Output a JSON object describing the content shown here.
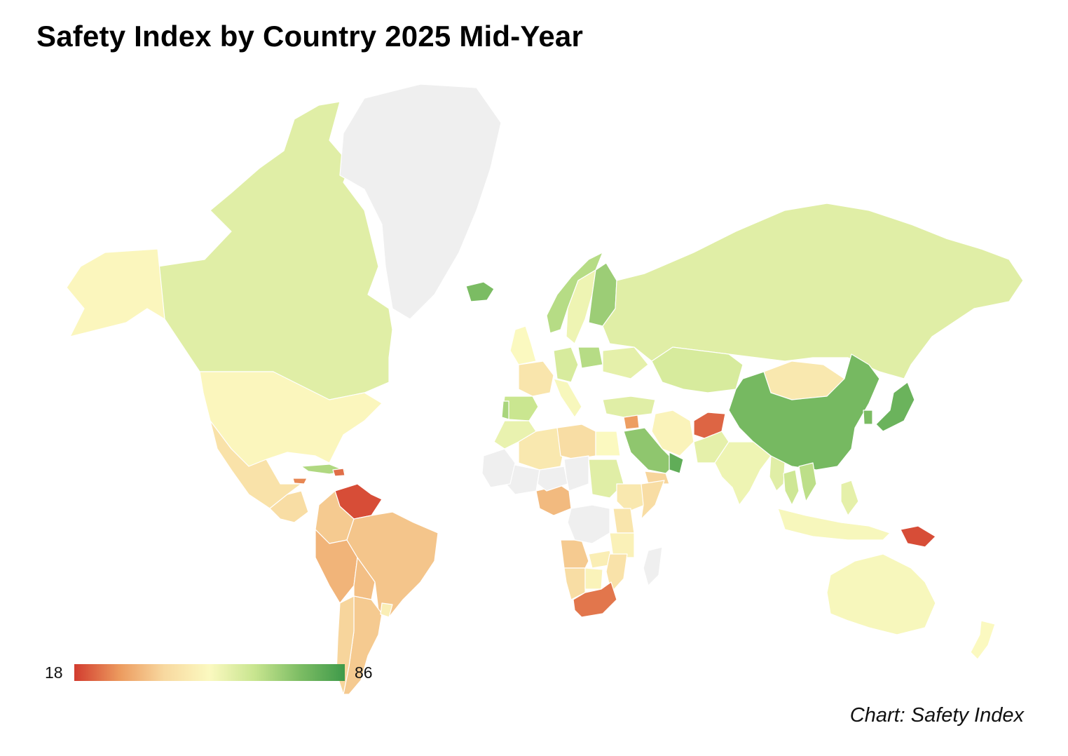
{
  "header": {
    "title": "Safety Index by Country 2025 Mid-Year"
  },
  "legend": {
    "min_label": "18",
    "max_label": "86",
    "min": 18,
    "max": 86,
    "stops": [
      "#d23c2f",
      "#ec9a5e",
      "#f8d9a0",
      "#fbf9c0",
      "#c8e58f",
      "#7dbd64",
      "#3f9a4a"
    ]
  },
  "colors": {
    "no_data": "#efefef",
    "ocean": "#ffffff"
  },
  "footer": {
    "source": "Chart: Safety Index"
  },
  "chart_data": {
    "type": "choropleth",
    "title": "Safety Index by Country 2025 Mid-Year",
    "value_range": [
      18,
      86
    ],
    "source": "Chart: Safety Index",
    "regions": [
      {
        "name": "Canada",
        "value": 58
      },
      {
        "name": "United States",
        "value": 51
      },
      {
        "name": "Alaska",
        "value": 51
      },
      {
        "name": "Greenland",
        "value": null
      },
      {
        "name": "Mexico",
        "value": 44
      },
      {
        "name": "Guatemala",
        "value": 42
      },
      {
        "name": "Cuba",
        "value": 67
      },
      {
        "name": "Haiti",
        "value": 24
      },
      {
        "name": "Jamaica",
        "value": 27
      },
      {
        "name": "Venezuela",
        "value": 20
      },
      {
        "name": "Colombia",
        "value": 38
      },
      {
        "name": "Peru",
        "value": 34
      },
      {
        "name": "Brazil",
        "value": 37
      },
      {
        "name": "Bolivia",
        "value": 36
      },
      {
        "name": "Argentina",
        "value": 38
      },
      {
        "name": "Chile",
        "value": 40
      },
      {
        "name": "Uruguay",
        "value": 48
      },
      {
        "name": "Iceland",
        "value": 75
      },
      {
        "name": "Norway",
        "value": 66
      },
      {
        "name": "Sweden",
        "value": 55
      },
      {
        "name": "Finland",
        "value": 70
      },
      {
        "name": "United Kingdom",
        "value": 52
      },
      {
        "name": "France",
        "value": 45
      },
      {
        "name": "Spain",
        "value": 63
      },
      {
        "name": "Portugal",
        "value": 68
      },
      {
        "name": "Germany",
        "value": 60
      },
      {
        "name": "Poland",
        "value": 66
      },
      {
        "name": "Italy",
        "value": 53
      },
      {
        "name": "Ukraine",
        "value": 57
      },
      {
        "name": "Russia",
        "value": 58
      },
      {
        "name": "Turkey",
        "value": 58
      },
      {
        "name": "Kazakhstan",
        "value": 60
      },
      {
        "name": "Mongolia",
        "value": 46
      },
      {
        "name": "China",
        "value": 76
      },
      {
        "name": "Japan",
        "value": 78
      },
      {
        "name": "South Korea",
        "value": 75
      },
      {
        "name": "Iran",
        "value": 50
      },
      {
        "name": "Afghanistan",
        "value": 23
      },
      {
        "name": "Pakistan",
        "value": 57
      },
      {
        "name": "India",
        "value": 55
      },
      {
        "name": "Saudi Arabia",
        "value": 72
      },
      {
        "name": "Oman",
        "value": 80
      },
      {
        "name": "Yemen",
        "value": 40
      },
      {
        "name": "Syria",
        "value": 30
      },
      {
        "name": "Myanmar",
        "value": 58
      },
      {
        "name": "Thailand",
        "value": 62
      },
      {
        "name": "Vietnam",
        "value": 65
      },
      {
        "name": "Indonesia",
        "value": 53
      },
      {
        "name": "Philippines",
        "value": 57
      },
      {
        "name": "Papua New Guinea",
        "value": 20
      },
      {
        "name": "Australia",
        "value": 53
      },
      {
        "name": "New Zealand",
        "value": 52
      },
      {
        "name": "Morocco",
        "value": 56
      },
      {
        "name": "Algeria",
        "value": 46
      },
      {
        "name": "Libya",
        "value": 42
      },
      {
        "name": "Egypt",
        "value": 52
      },
      {
        "name": "Sudan",
        "value": 58
      },
      {
        "name": "Nigeria",
        "value": 35
      },
      {
        "name": "Ethiopia",
        "value": 46
      },
      {
        "name": "Kenya",
        "value": 45
      },
      {
        "name": "Somalia",
        "value": 42
      },
      {
        "name": "Tanzania",
        "value": 49
      },
      {
        "name": "Angola",
        "value": 38
      },
      {
        "name": "Namibia",
        "value": 42
      },
      {
        "name": "Zambia",
        "value": 48
      },
      {
        "name": "Botswana",
        "value": 50
      },
      {
        "name": "Mozambique",
        "value": 44
      },
      {
        "name": "South Africa",
        "value": 25
      },
      {
        "name": "Madagascar",
        "value": null
      },
      {
        "name": "DR Congo",
        "value": null
      },
      {
        "name": "Mali",
        "value": null
      },
      {
        "name": "Niger",
        "value": null
      },
      {
        "name": "Chad",
        "value": null
      },
      {
        "name": "Mauritania",
        "value": null
      }
    ]
  }
}
